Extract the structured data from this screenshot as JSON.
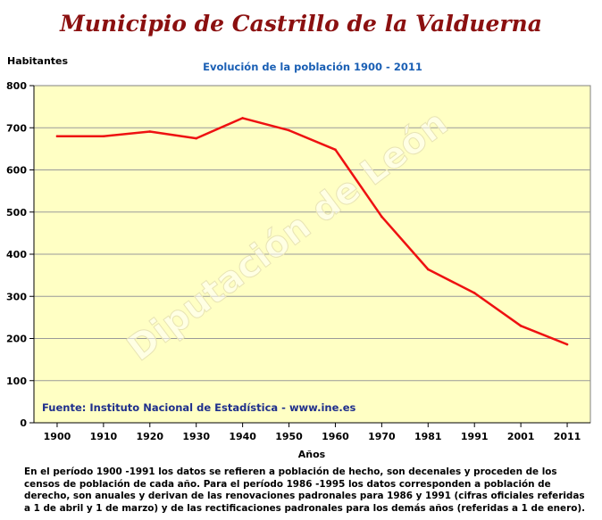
{
  "header": {
    "title": "Municipio de Castrillo de la Valduerna"
  },
  "chart_data": {
    "type": "line",
    "title": "Evolución de la población 1900 - 2011",
    "ylabel": "Habitantes",
    "xlabel": "Años",
    "categories": [
      "1900",
      "1910",
      "1920",
      "1930",
      "1940",
      "1950",
      "1960",
      "1970",
      "1981",
      "1991",
      "2001",
      "2011"
    ],
    "series": [
      {
        "values": [
          680,
          680,
          691,
          675,
          723,
          694,
          648,
          489,
          364,
          308,
          230,
          186
        ]
      }
    ],
    "ylim": [
      0,
      800
    ],
    "yticks": [
      0,
      100,
      200,
      300,
      400,
      500,
      600,
      700,
      800
    ],
    "grid": true,
    "colors": {
      "line": "#ee1111",
      "plot_background": "#ffffc4",
      "title": "#1a5fb4"
    },
    "watermark": "Diputación de León"
  },
  "footer": {
    "source": "Fuente: Instituto Nacional de Estadística - www.ine.es",
    "note": "En el período 1900 -1991 los datos se refieren a población de hecho, son decenales y proceden de los censos de población de cada año. Para el período 1986 -1995 los datos corresponden a población de derecho, son anuales y derivan de las renovaciones padronales para 1986 y 1991 (cifras oficiales referidas a 1 de abril y 1 de marzo) y de las rectificaciones padronales para los demás años (referidas a 1 de enero)."
  }
}
